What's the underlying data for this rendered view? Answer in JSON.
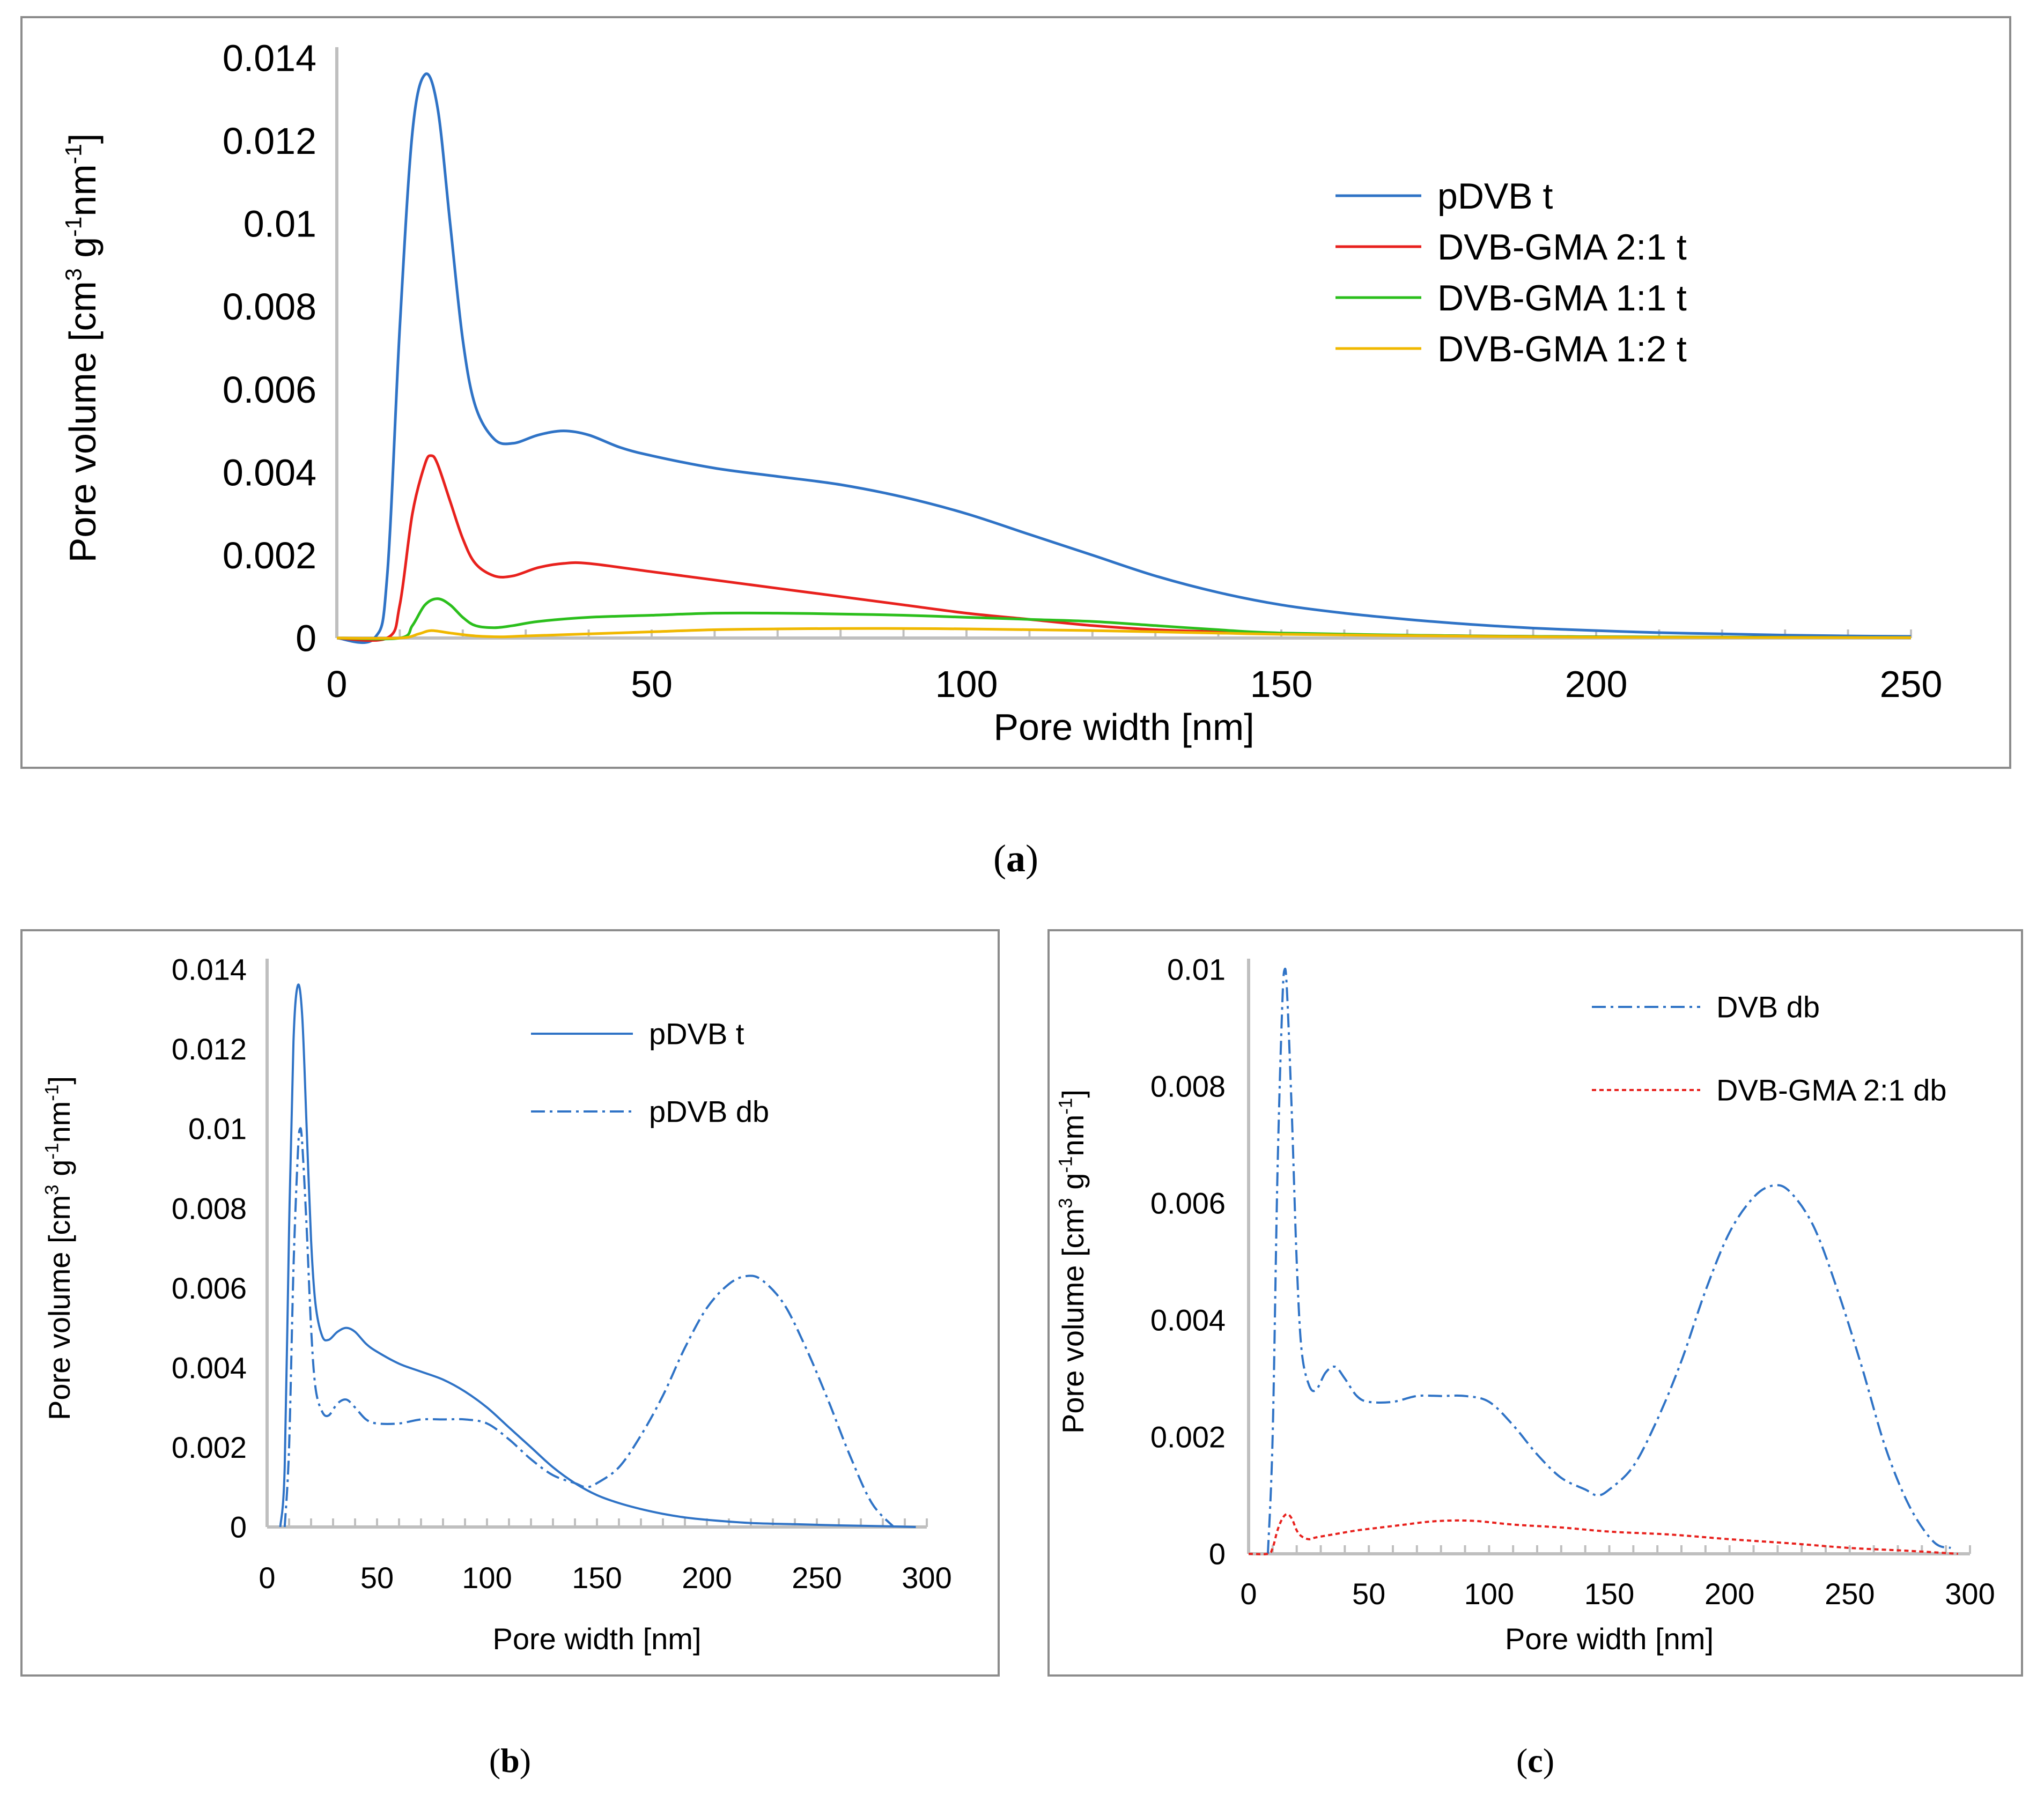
{
  "chart_data": [
    {
      "id": "a",
      "type": "line",
      "caption_letter": "a",
      "xlabel": "Pore width [nm]",
      "ylabel_main": "Pore volume  [cm",
      "ylabel_sup1": "3",
      "ylabel_mid": " g",
      "ylabel_sup2": "-1",
      "ylabel_mid2": "nm",
      "ylabel_sup3": "-1",
      "ylabel_end": "]",
      "xlim": [
        0,
        250
      ],
      "ylim": [
        0,
        0.014
      ],
      "x_ticks": [
        0,
        50,
        100,
        150,
        200,
        250
      ],
      "y_ticks": [
        0,
        0.002,
        0.004,
        0.006,
        0.008,
        0.01,
        0.012,
        0.014
      ],
      "y_tick_labels": [
        "0",
        "0.002",
        "0.004",
        "0.006",
        "0.008",
        "0.01",
        "0.012",
        "0.014"
      ],
      "legend_position": "top-right",
      "series": [
        {
          "name": "pDVB t",
          "color": "#2f73c6",
          "dash": "solid",
          "x": [
            0,
            6,
            8,
            10,
            12,
            14,
            16,
            18,
            20,
            22,
            25,
            28,
            32,
            36,
            40,
            45,
            50,
            60,
            70,
            80,
            90,
            100,
            110,
            120,
            130,
            140,
            150,
            160,
            170,
            180,
            190,
            200,
            210,
            220,
            230,
            240,
            250
          ],
          "values": [
            0,
            0,
            0.0015,
            0.0075,
            0.0122,
            0.0136,
            0.0128,
            0.01,
            0.0072,
            0.0056,
            0.0048,
            0.0047,
            0.0049,
            0.005,
            0.0049,
            0.0046,
            0.0044,
            0.0041,
            0.0039,
            0.0037,
            0.0034,
            0.003,
            0.0025,
            0.002,
            0.0015,
            0.0011,
            0.0008,
            0.0006,
            0.00045,
            0.00033,
            0.00024,
            0.00018,
            0.00013,
            0.0001,
            7e-05,
            5e-05,
            4e-05
          ]
        },
        {
          "name": "DVB-GMA 2:1 t",
          "color": "#e8211d",
          "dash": "solid",
          "x": [
            0,
            8,
            10,
            12,
            14,
            15,
            16,
            18,
            20,
            22,
            25,
            28,
            32,
            36,
            40,
            50,
            60,
            70,
            80,
            90,
            100,
            110,
            120,
            130,
            140,
            150,
            175,
            200,
            250
          ],
          "values": [
            0,
            0,
            0.0008,
            0.003,
            0.0042,
            0.0044,
            0.0042,
            0.0033,
            0.0024,
            0.0018,
            0.0015,
            0.0015,
            0.0017,
            0.0018,
            0.0018,
            0.0016,
            0.0014,
            0.0012,
            0.001,
            0.0008,
            0.0006,
            0.00045,
            0.0003,
            0.0002,
            0.00015,
            0.0001,
            6e-05,
            3e-05,
            1e-05
          ]
        },
        {
          "name": "DVB-GMA 1:1 t",
          "color": "#2bbf1c",
          "dash": "solid",
          "x": [
            0,
            10,
            12,
            14,
            16,
            18,
            20,
            22,
            25,
            28,
            32,
            40,
            50,
            60,
            70,
            80,
            90,
            100,
            110,
            120,
            130,
            140,
            150,
            175,
            200,
            250
          ],
          "values": [
            0,
            0,
            0.0003,
            0.0008,
            0.00095,
            0.0008,
            0.0005,
            0.0003,
            0.00025,
            0.0003,
            0.0004,
            0.0005,
            0.00055,
            0.0006,
            0.0006,
            0.00058,
            0.00055,
            0.0005,
            0.00045,
            0.0004,
            0.0003,
            0.0002,
            0.00012,
            6e-05,
            3e-05,
            1e-05
          ]
        },
        {
          "name": "DVB-GMA 1:2 t",
          "color": "#f0b800",
          "dash": "solid",
          "x": [
            0,
            10,
            13,
            15,
            18,
            22,
            26,
            30,
            40,
            50,
            60,
            70,
            80,
            90,
            100,
            110,
            120,
            130,
            140,
            150,
            175,
            200,
            250
          ],
          "values": [
            0,
            0,
            0.0001,
            0.00018,
            0.00012,
            5e-05,
            3e-05,
            5e-05,
            0.0001,
            0.00015,
            0.0002,
            0.00022,
            0.00023,
            0.00023,
            0.00022,
            0.0002,
            0.00018,
            0.00015,
            0.00012,
            9e-05,
            5e-05,
            2e-05,
            1e-05
          ]
        }
      ]
    },
    {
      "id": "b",
      "type": "line",
      "caption_letter": "b",
      "xlabel": "Pore width [nm]",
      "ylabel_main": "Pore volume  [cm",
      "ylabel_sup1": "3",
      "ylabel_mid": " g",
      "ylabel_sup2": "-1",
      "ylabel_mid2": "nm",
      "ylabel_sup3": "-1",
      "ylabel_end": "]",
      "xlim": [
        0,
        300
      ],
      "ylim": [
        0,
        0.014
      ],
      "x_ticks": [
        0,
        50,
        100,
        150,
        200,
        250,
        300
      ],
      "y_ticks": [
        0,
        0.002,
        0.004,
        0.006,
        0.008,
        0.01,
        0.012,
        0.014
      ],
      "y_tick_labels": [
        "0",
        "0.002",
        "0.004",
        "0.006",
        "0.008",
        "0.01",
        "0.012",
        "0.014"
      ],
      "legend_position": "top-right",
      "series": [
        {
          "name": "pDVB t",
          "color": "#2f73c6",
          "dash": "solid",
          "x": [
            6,
            8,
            10,
            12,
            14,
            16,
            18,
            20,
            22,
            25,
            28,
            32,
            36,
            40,
            45,
            50,
            60,
            70,
            80,
            90,
            100,
            110,
            120,
            130,
            140,
            150,
            160,
            170,
            180,
            190,
            200,
            220,
            240,
            260,
            280,
            295
          ],
          "values": [
            0,
            0.0015,
            0.0075,
            0.0122,
            0.0136,
            0.0128,
            0.01,
            0.0072,
            0.0056,
            0.0048,
            0.0047,
            0.0049,
            0.005,
            0.0049,
            0.0046,
            0.0044,
            0.0041,
            0.0039,
            0.0037,
            0.0034,
            0.003,
            0.0025,
            0.002,
            0.0015,
            0.0011,
            0.0008,
            0.0006,
            0.00045,
            0.00033,
            0.00024,
            0.00018,
            0.0001,
            7e-05,
            4e-05,
            2e-05,
            0
          ]
        },
        {
          "name": "pDVB db",
          "color": "#2f73c6",
          "dash": "dashdot",
          "x": [
            8,
            10,
            12,
            14,
            15,
            16,
            18,
            20,
            22,
            25,
            28,
            32,
            36,
            40,
            45,
            50,
            60,
            70,
            80,
            90,
            100,
            110,
            120,
            130,
            140,
            145,
            150,
            160,
            170,
            180,
            190,
            200,
            210,
            218,
            225,
            235,
            245,
            255,
            265,
            275,
            285
          ],
          "values": [
            0,
            0.002,
            0.0065,
            0.0094,
            0.01,
            0.0096,
            0.0075,
            0.005,
            0.0035,
            0.0029,
            0.0028,
            0.0031,
            0.0032,
            0.003,
            0.0027,
            0.0026,
            0.0026,
            0.0027,
            0.0027,
            0.0027,
            0.0026,
            0.0022,
            0.0017,
            0.0013,
            0.0011,
            0.001,
            0.0011,
            0.0015,
            0.0023,
            0.0033,
            0.0045,
            0.0055,
            0.0061,
            0.0063,
            0.0062,
            0.0056,
            0.0045,
            0.0032,
            0.0018,
            0.0006,
            0
          ]
        }
      ]
    },
    {
      "id": "c",
      "type": "line",
      "caption_letter": "c",
      "xlabel": "Pore width [nm]",
      "ylabel_main": "Pore volume  [cm",
      "ylabel_sup1": "3",
      "ylabel_mid": " g",
      "ylabel_sup2": "-1",
      "ylabel_mid2": "nm",
      "ylabel_sup3": "-1",
      "ylabel_end": "]",
      "xlim": [
        0,
        300
      ],
      "ylim": [
        0,
        0.01
      ],
      "x_ticks": [
        0,
        50,
        100,
        150,
        200,
        250,
        300
      ],
      "y_ticks": [
        0,
        0.002,
        0.004,
        0.006,
        0.008,
        0.01
      ],
      "y_tick_labels": [
        "0",
        "0.002",
        "0.004",
        "0.006",
        "0.008",
        "0.01"
      ],
      "legend_position": "top-right",
      "series": [
        {
          "name": "DVB db",
          "color": "#2f73c6",
          "dash": "dashdot",
          "x": [
            8,
            10,
            12,
            14,
            15,
            16,
            18,
            20,
            22,
            25,
            28,
            32,
            36,
            40,
            45,
            50,
            60,
            70,
            80,
            90,
            100,
            110,
            120,
            130,
            140,
            145,
            150,
            160,
            170,
            180,
            190,
            200,
            210,
            218,
            225,
            235,
            245,
            255,
            265,
            275,
            285,
            292
          ],
          "values": [
            0,
            0.002,
            0.0065,
            0.0094,
            0.01,
            0.0096,
            0.0075,
            0.005,
            0.0035,
            0.0029,
            0.0028,
            0.0031,
            0.0032,
            0.003,
            0.0027,
            0.0026,
            0.0026,
            0.0027,
            0.0027,
            0.0027,
            0.0026,
            0.0022,
            0.0017,
            0.0013,
            0.0011,
            0.001,
            0.0011,
            0.0015,
            0.0023,
            0.0033,
            0.0045,
            0.0055,
            0.0061,
            0.0063,
            0.0062,
            0.0056,
            0.0045,
            0.0032,
            0.0018,
            0.0008,
            0.0002,
            0.0001
          ]
        },
        {
          "name": "DVB-GMA 2:1 db",
          "color": "#e8211d",
          "dash": "dotted",
          "x": [
            0,
            8,
            10,
            12,
            14,
            16,
            18,
            20,
            22,
            25,
            28,
            35,
            45,
            55,
            65,
            75,
            85,
            95,
            110,
            130,
            150,
            175,
            200,
            225,
            250,
            275,
            295
          ],
          "values": [
            0,
            0,
            0.0001,
            0.0004,
            0.0006,
            0.00068,
            0.0006,
            0.0004,
            0.0003,
            0.00025,
            0.00028,
            0.00033,
            0.0004,
            0.00045,
            0.0005,
            0.00055,
            0.00057,
            0.00056,
            0.0005,
            0.00045,
            0.00038,
            0.00033,
            0.00025,
            0.00018,
            0.0001,
            5e-05,
            0
          ]
        }
      ]
    }
  ]
}
